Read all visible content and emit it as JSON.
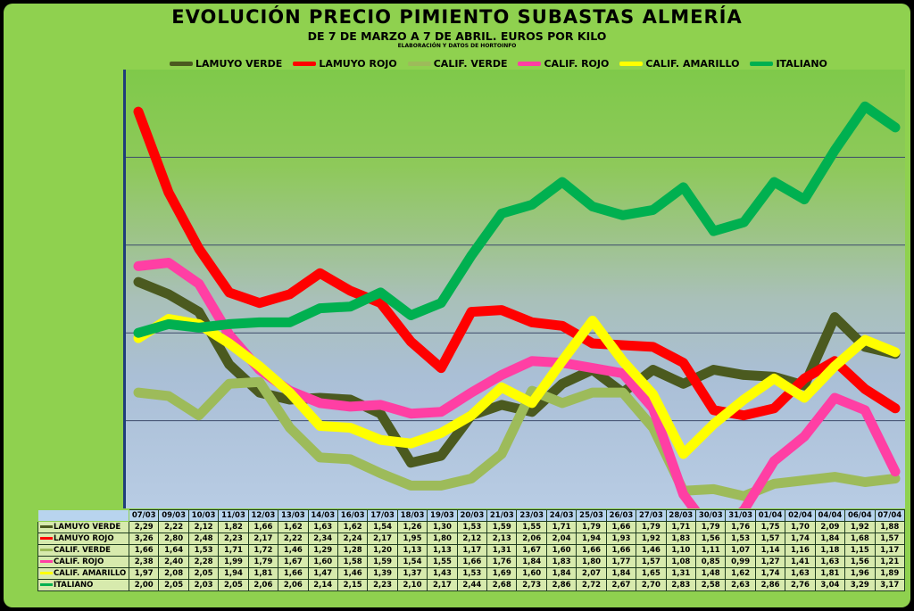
{
  "title": "EVOLUCIÓN PRECIO PIMIENTO SUBASTAS ALMERÍA",
  "subtitle": "DE 7 DE MARZO A 7 DE ABRIL. EUROS POR KILO",
  "source_note": "ELABORACIÓN Y DATOS DE HORTOINFO",
  "chart_data": {
    "type": "line",
    "title": "EVOLUCIÓN PRECIO PIMIENTO SUBASTAS ALMERÍA",
    "subtitle": "DE 7 DE MARZO A 7 DE ABRIL. EUROS POR KILO",
    "categories": [
      "07/03",
      "09/03",
      "10/03",
      "11/03",
      "12/03",
      "13/03",
      "14/03",
      "16/03",
      "17/03",
      "18/03",
      "19/03",
      "20/03",
      "21/03",
      "23/03",
      "24/03",
      "25/03",
      "26/03",
      "27/03",
      "28/03",
      "30/03",
      "31/03",
      "01/04",
      "02/04",
      "04/04",
      "06/04",
      "07/04"
    ],
    "ylim": [
      1.0,
      3.5
    ],
    "grid": true,
    "legend_position": "top",
    "series": [
      {
        "name": "LAMUYO VERDE",
        "color": "#4b5a1f",
        "labels": [
          "2,29",
          "2,22",
          "2,12",
          "1,82",
          "1,66",
          "1,62",
          "1,63",
          "1,62",
          "1,54",
          "1,26",
          "1,30",
          "1,53",
          "1,59",
          "1,55",
          "1,71",
          "1,79",
          "1,66",
          "1,79",
          "1,71",
          "1,79",
          "1,76",
          "1,75",
          "1,70",
          "2,09",
          "1,92",
          "1,88"
        ],
        "values": [
          2.29,
          2.22,
          2.12,
          1.82,
          1.66,
          1.62,
          1.63,
          1.62,
          1.54,
          1.26,
          1.3,
          1.53,
          1.59,
          1.55,
          1.71,
          1.79,
          1.66,
          1.79,
          1.71,
          1.79,
          1.76,
          1.75,
          1.7,
          2.09,
          1.92,
          1.88
        ]
      },
      {
        "name": "LAMUYO ROJO",
        "color": "#ff0000",
        "labels": [
          "3,26",
          "2,80",
          "2,48",
          "2,23",
          "2,17",
          "2,22",
          "2,34",
          "2,24",
          "2,17",
          "1,95",
          "1,80",
          "2,12",
          "2,13",
          "2,06",
          "2,04",
          "1,94",
          "1,93",
          "1,92",
          "1,83",
          "1,56",
          "1,53",
          "1,57",
          "1,74",
          "1,84",
          "1,68",
          "1,57"
        ],
        "values": [
          3.26,
          2.8,
          2.48,
          2.23,
          2.17,
          2.22,
          2.34,
          2.24,
          2.17,
          1.95,
          1.8,
          2.12,
          2.13,
          2.06,
          2.04,
          1.94,
          1.93,
          1.92,
          1.83,
          1.56,
          1.53,
          1.57,
          1.74,
          1.84,
          1.68,
          1.57
        ]
      },
      {
        "name": "CALIF. VERDE",
        "color": "#9dbb5a",
        "labels": [
          "1,66",
          "1,64",
          "1,53",
          "1,71",
          "1,72",
          "1,46",
          "1,29",
          "1,28",
          "1,20",
          "1,13",
          "1,13",
          "1,17",
          "1,31",
          "1,67",
          "1,60",
          "1,66",
          "1,66",
          "1,46",
          "1,10",
          "1,11",
          "1,07",
          "1,14",
          "1,16",
          "1,18",
          "1,15",
          "1,17"
        ],
        "values": [
          1.66,
          1.64,
          1.53,
          1.71,
          1.72,
          1.46,
          1.29,
          1.28,
          1.2,
          1.13,
          1.13,
          1.17,
          1.31,
          1.67,
          1.6,
          1.66,
          1.66,
          1.46,
          1.1,
          1.11,
          1.07,
          1.14,
          1.16,
          1.18,
          1.15,
          1.17
        ]
      },
      {
        "name": "CALIF. ROJO",
        "color": "#ff3fa4",
        "labels": [
          "2,38",
          "2,40",
          "2,28",
          "1,99",
          "1,79",
          "1,67",
          "1,60",
          "1,58",
          "1,59",
          "1,54",
          "1,55",
          "1,66",
          "1,76",
          "1,84",
          "1,83",
          "1,80",
          "1,77",
          "1,57",
          "1,08",
          "0,85",
          "0,99",
          "1,27",
          "1,41",
          "1,63",
          "1,56",
          "1,21"
        ],
        "values": [
          2.38,
          2.4,
          2.28,
          1.99,
          1.79,
          1.67,
          1.6,
          1.58,
          1.59,
          1.54,
          1.55,
          1.66,
          1.76,
          1.84,
          1.83,
          1.8,
          1.77,
          1.57,
          1.08,
          0.85,
          0.99,
          1.27,
          1.41,
          1.63,
          1.56,
          1.21
        ]
      },
      {
        "name": "CALIF. AMARILLO",
        "color": "#ffff00",
        "labels": [
          "1,97",
          "2,08",
          "2,05",
          "1,94",
          "1,81",
          "1,66",
          "1,47",
          "1,46",
          "1,39",
          "1,37",
          "1,43",
          "1,53",
          "1,69",
          "1,60",
          "1,84",
          "2,07",
          "1,84",
          "1,65",
          "1,31",
          "1,48",
          "1,62",
          "1,74",
          "1,63",
          "1,81",
          "1,96",
          "1,89"
        ],
        "values": [
          1.97,
          2.08,
          2.05,
          1.94,
          1.81,
          1.66,
          1.47,
          1.46,
          1.39,
          1.37,
          1.43,
          1.53,
          1.69,
          1.6,
          1.84,
          2.07,
          1.84,
          1.65,
          1.31,
          1.48,
          1.62,
          1.74,
          1.63,
          1.81,
          1.96,
          1.89
        ]
      },
      {
        "name": "ITALIANO",
        "color": "#00b050",
        "labels": [
          "2,00",
          "2,05",
          "2,03",
          "2,05",
          "2,06",
          "2,06",
          "2,14",
          "2,15",
          "2,23",
          "2,10",
          "2,17",
          "2,44",
          "2,68",
          "2,73",
          "2,86",
          "2,72",
          "2,67",
          "2,70",
          "2,83",
          "2,58",
          "2,63",
          "2,86",
          "2,76",
          "3,04",
          "3,29",
          "3,17"
        ],
        "values": [
          2.0,
          2.05,
          2.03,
          2.05,
          2.06,
          2.06,
          2.14,
          2.15,
          2.23,
          2.1,
          2.17,
          2.44,
          2.68,
          2.73,
          2.86,
          2.72,
          2.67,
          2.7,
          2.83,
          2.58,
          2.63,
          2.86,
          2.76,
          3.04,
          3.29,
          3.17
        ]
      }
    ]
  }
}
